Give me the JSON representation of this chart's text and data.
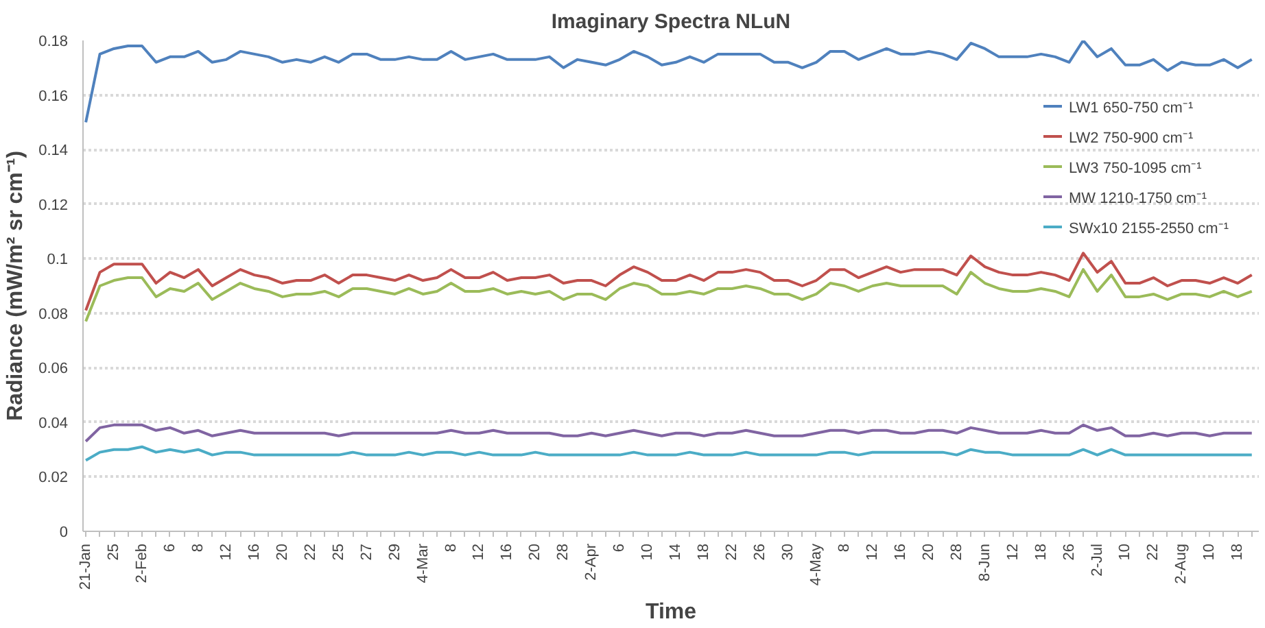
{
  "chart_data": {
    "type": "line",
    "title": "Imaginary Spectra NLuN",
    "xlabel": "Time",
    "ylabel": "Radiance (mW/m² sr cm⁻¹)",
    "categories": [
      "21-Jan",
      null,
      "25",
      null,
      "2-Feb",
      null,
      "6",
      null,
      "8",
      null,
      "12",
      null,
      "16",
      null,
      "20",
      null,
      "22",
      null,
      "25",
      null,
      "27",
      null,
      "29",
      null,
      "4-Mar",
      null,
      "8",
      null,
      "12",
      null,
      "16",
      null,
      "20",
      null,
      "28",
      null,
      "2-Apr",
      null,
      "6",
      null,
      "10",
      null,
      "14",
      null,
      "18",
      null,
      "22",
      null,
      "26",
      null,
      "30",
      null,
      "4-May",
      null,
      "8",
      null,
      "12",
      null,
      "16",
      null,
      "20",
      null,
      "28",
      null,
      "8-Jun",
      null,
      "12",
      null,
      "18",
      null,
      "26",
      null,
      "2-Jul",
      null,
      "10",
      null,
      "22",
      null,
      "2-Aug",
      null,
      "10",
      null,
      "18",
      null
    ],
    "series": [
      {
        "name": "LW1 650-750 cm⁻¹",
        "color": "#4f81bd",
        "values": [
          0.15,
          0.175,
          0.177,
          0.178,
          0.178,
          0.172,
          0.174,
          0.174,
          0.176,
          0.172,
          0.173,
          0.176,
          0.175,
          0.174,
          0.172,
          0.173,
          0.172,
          0.174,
          0.172,
          0.175,
          0.175,
          0.173,
          0.173,
          0.174,
          0.173,
          0.173,
          0.176,
          0.173,
          0.174,
          0.175,
          0.173,
          0.173,
          0.173,
          0.174,
          0.17,
          0.173,
          0.172,
          0.171,
          0.173,
          0.176,
          0.174,
          0.171,
          0.172,
          0.174,
          0.172,
          0.175,
          0.175,
          0.175,
          0.175,
          0.172,
          0.172,
          0.17,
          0.172,
          0.176,
          0.176,
          0.173,
          0.175,
          0.177,
          0.175,
          0.175,
          0.176,
          0.175,
          0.173,
          0.179,
          0.177,
          0.174,
          0.174,
          0.174,
          0.175,
          0.174,
          0.172,
          0.18,
          0.174,
          0.177,
          0.171,
          0.171,
          0.173,
          0.169,
          0.172,
          0.171,
          0.171,
          0.173,
          0.17,
          0.173
        ]
      },
      {
        "name": "LW2 750-900 cm⁻¹",
        "color": "#c0504d",
        "values": [
          0.081,
          0.095,
          0.098,
          0.098,
          0.098,
          0.091,
          0.095,
          0.093,
          0.096,
          0.09,
          0.093,
          0.096,
          0.094,
          0.093,
          0.091,
          0.092,
          0.092,
          0.094,
          0.091,
          0.094,
          0.094,
          0.093,
          0.092,
          0.094,
          0.092,
          0.093,
          0.096,
          0.093,
          0.093,
          0.095,
          0.092,
          0.093,
          0.093,
          0.094,
          0.091,
          0.092,
          0.092,
          0.09,
          0.094,
          0.097,
          0.095,
          0.092,
          0.092,
          0.094,
          0.092,
          0.095,
          0.095,
          0.096,
          0.095,
          0.092,
          0.092,
          0.09,
          0.092,
          0.096,
          0.096,
          0.093,
          0.095,
          0.097,
          0.095,
          0.096,
          0.096,
          0.096,
          0.094,
          0.101,
          0.097,
          0.095,
          0.094,
          0.094,
          0.095,
          0.094,
          0.092,
          0.102,
          0.095,
          0.099,
          0.091,
          0.091,
          0.093,
          0.09,
          0.092,
          0.092,
          0.091,
          0.093,
          0.091,
          0.094
        ]
      },
      {
        "name": "LW3 750-1095 cm⁻¹",
        "color": "#9bbb59",
        "values": [
          0.077,
          0.09,
          0.092,
          0.093,
          0.093,
          0.086,
          0.089,
          0.088,
          0.091,
          0.085,
          0.088,
          0.091,
          0.089,
          0.088,
          0.086,
          0.087,
          0.087,
          0.088,
          0.086,
          0.089,
          0.089,
          0.088,
          0.087,
          0.089,
          0.087,
          0.088,
          0.091,
          0.088,
          0.088,
          0.089,
          0.087,
          0.088,
          0.087,
          0.088,
          0.085,
          0.087,
          0.087,
          0.085,
          0.089,
          0.091,
          0.09,
          0.087,
          0.087,
          0.088,
          0.087,
          0.089,
          0.089,
          0.09,
          0.089,
          0.087,
          0.087,
          0.085,
          0.087,
          0.091,
          0.09,
          0.088,
          0.09,
          0.091,
          0.09,
          0.09,
          0.09,
          0.09,
          0.087,
          0.095,
          0.091,
          0.089,
          0.088,
          0.088,
          0.089,
          0.088,
          0.086,
          0.096,
          0.088,
          0.094,
          0.086,
          0.086,
          0.087,
          0.085,
          0.087,
          0.087,
          0.086,
          0.088,
          0.086,
          0.088
        ]
      },
      {
        "name": "MW 1210-1750 cm⁻¹",
        "color": "#8064a2",
        "values": [
          0.033,
          0.038,
          0.039,
          0.039,
          0.039,
          0.037,
          0.038,
          0.036,
          0.037,
          0.035,
          0.036,
          0.037,
          0.036,
          0.036,
          0.036,
          0.036,
          0.036,
          0.036,
          0.035,
          0.036,
          0.036,
          0.036,
          0.036,
          0.036,
          0.036,
          0.036,
          0.037,
          0.036,
          0.036,
          0.037,
          0.036,
          0.036,
          0.036,
          0.036,
          0.035,
          0.035,
          0.036,
          0.035,
          0.036,
          0.037,
          0.036,
          0.035,
          0.036,
          0.036,
          0.035,
          0.036,
          0.036,
          0.037,
          0.036,
          0.035,
          0.035,
          0.035,
          0.036,
          0.037,
          0.037,
          0.036,
          0.037,
          0.037,
          0.036,
          0.036,
          0.037,
          0.037,
          0.036,
          0.038,
          0.037,
          0.036,
          0.036,
          0.036,
          0.037,
          0.036,
          0.036,
          0.039,
          0.037,
          0.038,
          0.035,
          0.035,
          0.036,
          0.035,
          0.036,
          0.036,
          0.035,
          0.036,
          0.036,
          0.036
        ]
      },
      {
        "name": "SWx10 2155-2550 cm⁻¹",
        "color": "#4bacc6",
        "values": [
          0.026,
          0.029,
          0.03,
          0.03,
          0.031,
          0.029,
          0.03,
          0.029,
          0.03,
          0.028,
          0.029,
          0.029,
          0.028,
          0.028,
          0.028,
          0.028,
          0.028,
          0.028,
          0.028,
          0.029,
          0.028,
          0.028,
          0.028,
          0.029,
          0.028,
          0.029,
          0.029,
          0.028,
          0.029,
          0.028,
          0.028,
          0.028,
          0.029,
          0.028,
          0.028,
          0.028,
          0.028,
          0.028,
          0.028,
          0.029,
          0.028,
          0.028,
          0.028,
          0.029,
          0.028,
          0.028,
          0.028,
          0.029,
          0.028,
          0.028,
          0.028,
          0.028,
          0.028,
          0.029,
          0.029,
          0.028,
          0.029,
          0.029,
          0.029,
          0.029,
          0.029,
          0.029,
          0.028,
          0.03,
          0.029,
          0.029,
          0.028,
          0.028,
          0.028,
          0.028,
          0.028,
          0.03,
          0.028,
          0.03,
          0.028,
          0.028,
          0.028,
          0.028,
          0.028,
          0.028,
          0.028,
          0.028,
          0.028,
          0.028
        ]
      }
    ],
    "ylim": [
      0,
      0.18
    ],
    "yticks": [
      0,
      0.02,
      0.04,
      0.06,
      0.08,
      0.1,
      0.12,
      0.14,
      0.16,
      0.18
    ],
    "grid": "y",
    "legend": "right",
    "marker": "none",
    "line_style": "solid"
  }
}
